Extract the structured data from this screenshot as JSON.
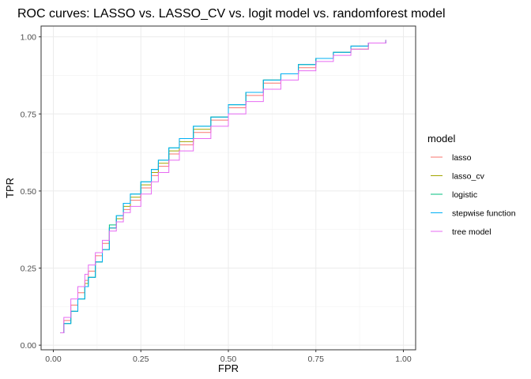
{
  "chart_data": {
    "type": "line",
    "title": "ROC curves: LASSO vs. LASSO_CV vs. logit model vs. randomforest model",
    "xlabel": "FPR",
    "ylabel": "TPR",
    "xlim": [
      0,
      1
    ],
    "ylim": [
      0,
      1
    ],
    "x_ticks": [
      "0.00",
      "0.25",
      "0.50",
      "0.75",
      "1.00"
    ],
    "y_ticks": [
      "0.00",
      "0.25",
      "0.50",
      "0.75",
      "1.00"
    ],
    "grid": true,
    "legend": {
      "title": "model",
      "position": "right"
    },
    "series": [
      {
        "name": "lasso",
        "color": "#F8766D",
        "x": [
          0.02,
          0.03,
          0.05,
          0.07,
          0.09,
          0.1,
          0.12,
          0.14,
          0.16,
          0.18,
          0.2,
          0.22,
          0.25,
          0.28,
          0.3,
          0.33,
          0.36,
          0.4,
          0.45,
          0.5,
          0.55,
          0.6,
          0.65,
          0.7,
          0.75,
          0.8,
          0.85,
          0.9,
          0.95
        ],
        "y": [
          0.04,
          0.08,
          0.13,
          0.17,
          0.21,
          0.24,
          0.29,
          0.33,
          0.38,
          0.41,
          0.44,
          0.47,
          0.51,
          0.55,
          0.58,
          0.62,
          0.65,
          0.69,
          0.73,
          0.77,
          0.81,
          0.85,
          0.88,
          0.9,
          0.93,
          0.95,
          0.97,
          0.98,
          0.99
        ]
      },
      {
        "name": "lasso_cv",
        "color": "#A3A500",
        "x": [
          0.02,
          0.03,
          0.05,
          0.07,
          0.09,
          0.1,
          0.12,
          0.14,
          0.16,
          0.18,
          0.2,
          0.22,
          0.25,
          0.28,
          0.3,
          0.33,
          0.36,
          0.4,
          0.45,
          0.5,
          0.55,
          0.6,
          0.65,
          0.7,
          0.75,
          0.8,
          0.85,
          0.9,
          0.95
        ],
        "y": [
          0.04,
          0.07,
          0.11,
          0.15,
          0.2,
          0.22,
          0.27,
          0.31,
          0.38,
          0.41,
          0.45,
          0.48,
          0.52,
          0.56,
          0.59,
          0.63,
          0.66,
          0.7,
          0.74,
          0.78,
          0.82,
          0.86,
          0.88,
          0.91,
          0.93,
          0.95,
          0.96,
          0.98,
          0.99
        ]
      },
      {
        "name": "logistic",
        "color": "#00BF7D",
        "x": [
          0.02,
          0.03,
          0.05,
          0.07,
          0.09,
          0.1,
          0.12,
          0.14,
          0.16,
          0.18,
          0.2,
          0.22,
          0.25,
          0.28,
          0.3,
          0.33,
          0.36,
          0.4,
          0.45,
          0.5,
          0.55,
          0.6,
          0.65,
          0.7,
          0.75,
          0.8,
          0.85,
          0.9,
          0.95
        ],
        "y": [
          0.04,
          0.07,
          0.11,
          0.15,
          0.19,
          0.22,
          0.27,
          0.31,
          0.39,
          0.42,
          0.46,
          0.49,
          0.53,
          0.57,
          0.6,
          0.64,
          0.67,
          0.71,
          0.74,
          0.78,
          0.82,
          0.86,
          0.88,
          0.91,
          0.93,
          0.95,
          0.97,
          0.98,
          0.99
        ]
      },
      {
        "name": "stepwise function",
        "color": "#00B0F6",
        "x": [
          0.02,
          0.03,
          0.05,
          0.07,
          0.09,
          0.1,
          0.12,
          0.14,
          0.16,
          0.18,
          0.2,
          0.22,
          0.25,
          0.28,
          0.3,
          0.33,
          0.36,
          0.4,
          0.45,
          0.5,
          0.55,
          0.6,
          0.65,
          0.7,
          0.75,
          0.8,
          0.85,
          0.9,
          0.95
        ],
        "y": [
          0.04,
          0.07,
          0.11,
          0.15,
          0.19,
          0.22,
          0.27,
          0.31,
          0.38,
          0.42,
          0.46,
          0.49,
          0.53,
          0.57,
          0.6,
          0.64,
          0.67,
          0.71,
          0.74,
          0.78,
          0.82,
          0.86,
          0.88,
          0.91,
          0.93,
          0.95,
          0.97,
          0.98,
          0.99
        ]
      },
      {
        "name": "tree model",
        "color": "#E76BF3",
        "x": [
          0.02,
          0.03,
          0.05,
          0.07,
          0.09,
          0.1,
          0.12,
          0.14,
          0.16,
          0.18,
          0.2,
          0.22,
          0.25,
          0.28,
          0.3,
          0.33,
          0.36,
          0.4,
          0.45,
          0.5,
          0.55,
          0.6,
          0.65,
          0.7,
          0.75,
          0.8,
          0.85,
          0.9,
          0.95
        ],
        "y": [
          0.04,
          0.09,
          0.15,
          0.19,
          0.23,
          0.26,
          0.3,
          0.34,
          0.37,
          0.4,
          0.43,
          0.45,
          0.49,
          0.53,
          0.56,
          0.6,
          0.63,
          0.67,
          0.71,
          0.75,
          0.79,
          0.83,
          0.86,
          0.89,
          0.92,
          0.94,
          0.96,
          0.98,
          0.99
        ]
      }
    ]
  }
}
